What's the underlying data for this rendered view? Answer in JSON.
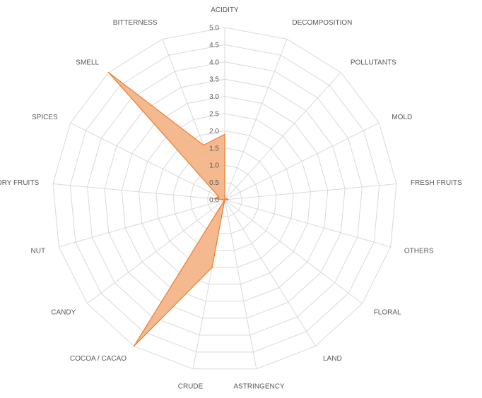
{
  "chart_data": {
    "type": "radar",
    "categories": [
      "ACIDITY",
      "DECOMPOSITION",
      "POLLUTANTS",
      "MOLD",
      "FRESH FRUITS",
      "OTHERS",
      "FLORAL",
      "LAND",
      "ASTRINGENCY",
      "CRUDE",
      "COCOA / CACAO",
      "CANDY",
      "NUT",
      "DRY FRUITS",
      "SPICES",
      "SMELL",
      "BITTERNESS"
    ],
    "series": [
      {
        "values": [
          1.9,
          0.0,
          0.0,
          0.05,
          0.1,
          0.0,
          0.0,
          0.0,
          0.0,
          2.0,
          5.0,
          0.0,
          0.0,
          0.3,
          0.2,
          5.0,
          1.7
        ],
        "color": "#ed7d31",
        "fill": "#f4b183"
      }
    ],
    "rlim": [
      0,
      5
    ],
    "ticks": [
      "0.0",
      "0.5",
      "1.0",
      "1.5",
      "2.0",
      "2.5",
      "3.0",
      "3.5",
      "4.0",
      "4.5",
      "5.0"
    ],
    "grid": true,
    "legend": false
  }
}
